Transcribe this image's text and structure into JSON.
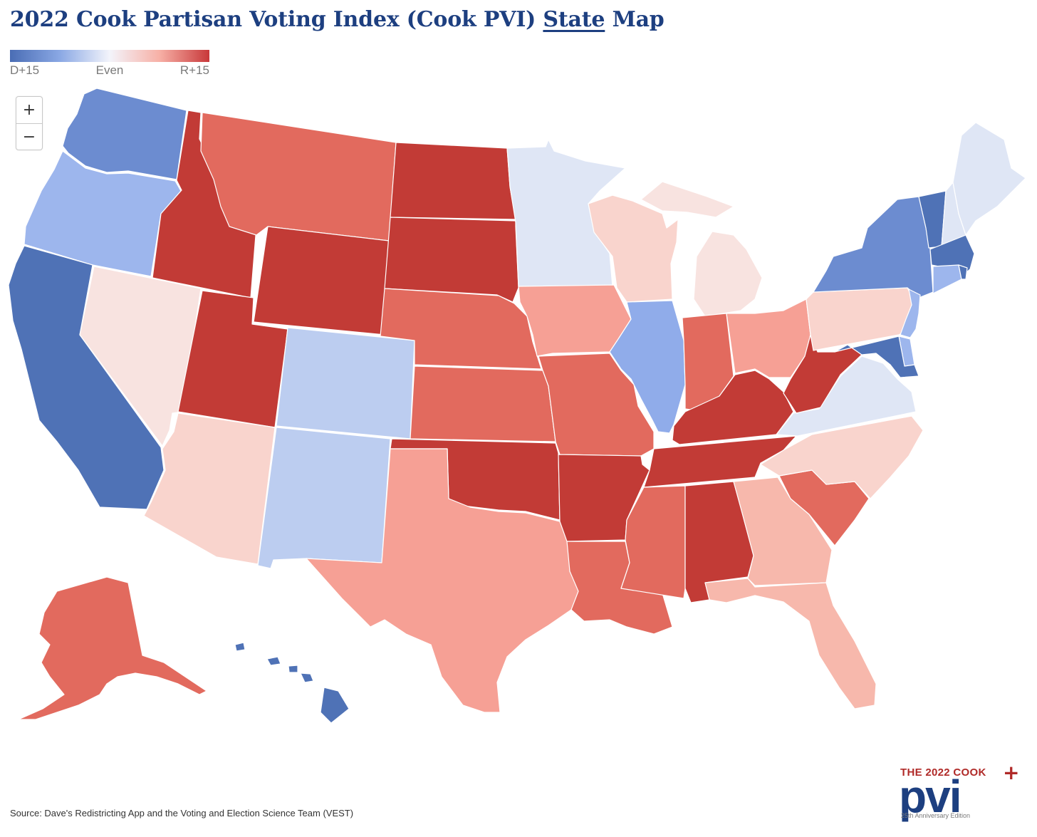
{
  "title": {
    "before": "2022 Cook Partisan Voting Index (Cook PVI)",
    "link": "State",
    "after": "Map"
  },
  "legend": {
    "left_label": "D+15",
    "mid_label": "Even",
    "right_label": "R+15",
    "gradient": [
      "#4a6db5",
      "#8aa8e4",
      "#f3f4fb",
      "#f7b0a6",
      "#c8383a"
    ]
  },
  "zoom": {
    "in_label": "+",
    "out_label": "−"
  },
  "source": "Source: Dave's Redistricting App and the Voting and Election Science Team (VEST)",
  "logo": {
    "line1": "THE 2022 COOK",
    "plus": "+",
    "pvi": "pvi",
    "line3": "25th Anniversary Edition"
  },
  "colors": {
    "dem_strong": "#4f72b6",
    "dem_medium": "#6c8cd0",
    "dem_light": "#90acea",
    "dem_lean": "#9db6ed",
    "dem_pale": "#bccdf0",
    "tossup_blue": "#dfe6f5",
    "tossup_red": "#f8e3e0",
    "rep_pale": "#f9d4cd",
    "rep_lean": "#f7b8ac",
    "rep_light": "#f6a095",
    "rep_medium": "#e26a5e",
    "rep_strong": "#c23b36"
  },
  "states": [
    {
      "name": "Washington",
      "tier": "dem_medium"
    },
    {
      "name": "Oregon",
      "tier": "dem_lean"
    },
    {
      "name": "California",
      "tier": "dem_strong"
    },
    {
      "name": "Nevada",
      "tier": "tossup_red"
    },
    {
      "name": "Idaho",
      "tier": "rep_strong"
    },
    {
      "name": "Montana",
      "tier": "rep_medium"
    },
    {
      "name": "Wyoming",
      "tier": "rep_strong"
    },
    {
      "name": "Utah",
      "tier": "rep_strong"
    },
    {
      "name": "Arizona",
      "tier": "rep_pale"
    },
    {
      "name": "Colorado",
      "tier": "dem_pale"
    },
    {
      "name": "New Mexico",
      "tier": "dem_pale"
    },
    {
      "name": "North Dakota",
      "tier": "rep_strong"
    },
    {
      "name": "South Dakota",
      "tier": "rep_strong"
    },
    {
      "name": "Nebraska",
      "tier": "rep_medium"
    },
    {
      "name": "Kansas",
      "tier": "rep_medium"
    },
    {
      "name": "Oklahoma",
      "tier": "rep_strong"
    },
    {
      "name": "Texas",
      "tier": "rep_light"
    },
    {
      "name": "Minnesota",
      "tier": "tossup_blue"
    },
    {
      "name": "Iowa",
      "tier": "rep_light"
    },
    {
      "name": "Missouri",
      "tier": "rep_medium"
    },
    {
      "name": "Arkansas",
      "tier": "rep_strong"
    },
    {
      "name": "Louisiana",
      "tier": "rep_medium"
    },
    {
      "name": "Wisconsin",
      "tier": "rep_pale"
    },
    {
      "name": "Illinois",
      "tier": "dem_light"
    },
    {
      "name": "Michigan",
      "tier": "tossup_red"
    },
    {
      "name": "Indiana",
      "tier": "rep_medium"
    },
    {
      "name": "Ohio",
      "tier": "rep_light"
    },
    {
      "name": "Kentucky",
      "tier": "rep_strong"
    },
    {
      "name": "Tennessee",
      "tier": "rep_strong"
    },
    {
      "name": "Mississippi",
      "tier": "rep_medium"
    },
    {
      "name": "Alabama",
      "tier": "rep_strong"
    },
    {
      "name": "Georgia",
      "tier": "rep_lean"
    },
    {
      "name": "Florida",
      "tier": "rep_lean"
    },
    {
      "name": "South Carolina",
      "tier": "rep_medium"
    },
    {
      "name": "North Carolina",
      "tier": "rep_pale"
    },
    {
      "name": "Virginia",
      "tier": "tossup_blue"
    },
    {
      "name": "West Virginia",
      "tier": "rep_strong"
    },
    {
      "name": "Pennsylvania",
      "tier": "rep_pale"
    },
    {
      "name": "New York",
      "tier": "dem_medium"
    },
    {
      "name": "Vermont",
      "tier": "dem_strong"
    },
    {
      "name": "New Hampshire",
      "tier": "tossup_blue"
    },
    {
      "name": "Maine",
      "tier": "tossup_blue"
    },
    {
      "name": "Massachusetts",
      "tier": "dem_strong"
    },
    {
      "name": "Connecticut",
      "tier": "dem_lean"
    },
    {
      "name": "Rhode Island",
      "tier": "dem_strong"
    },
    {
      "name": "New Jersey",
      "tier": "dem_lean"
    },
    {
      "name": "Delaware",
      "tier": "dem_lean"
    },
    {
      "name": "Maryland",
      "tier": "dem_strong"
    },
    {
      "name": "Alaska",
      "tier": "rep_medium"
    },
    {
      "name": "Hawaii",
      "tier": "dem_strong"
    }
  ]
}
